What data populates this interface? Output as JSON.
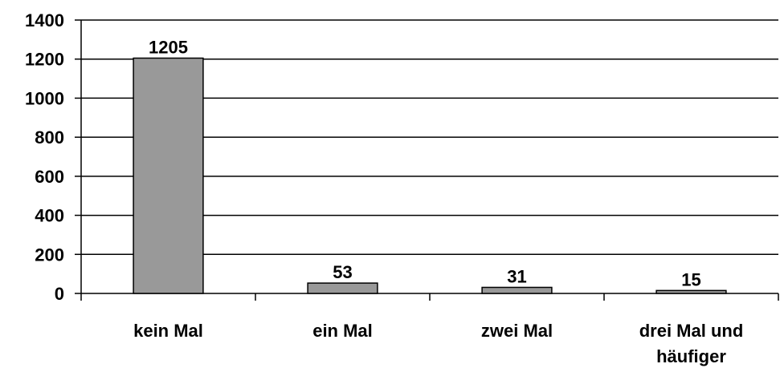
{
  "chart_data": {
    "type": "bar",
    "categories": [
      "kein Mal",
      "ein Mal",
      "zwei Mal",
      "drei Mal und häufiger"
    ],
    "values": [
      1205,
      53,
      31,
      15
    ],
    "color": "#999999",
    "ylim": [
      0,
      1400
    ],
    "yticks": [
      0,
      200,
      400,
      600,
      800,
      1000,
      1200,
      1400
    ],
    "grid": true
  }
}
